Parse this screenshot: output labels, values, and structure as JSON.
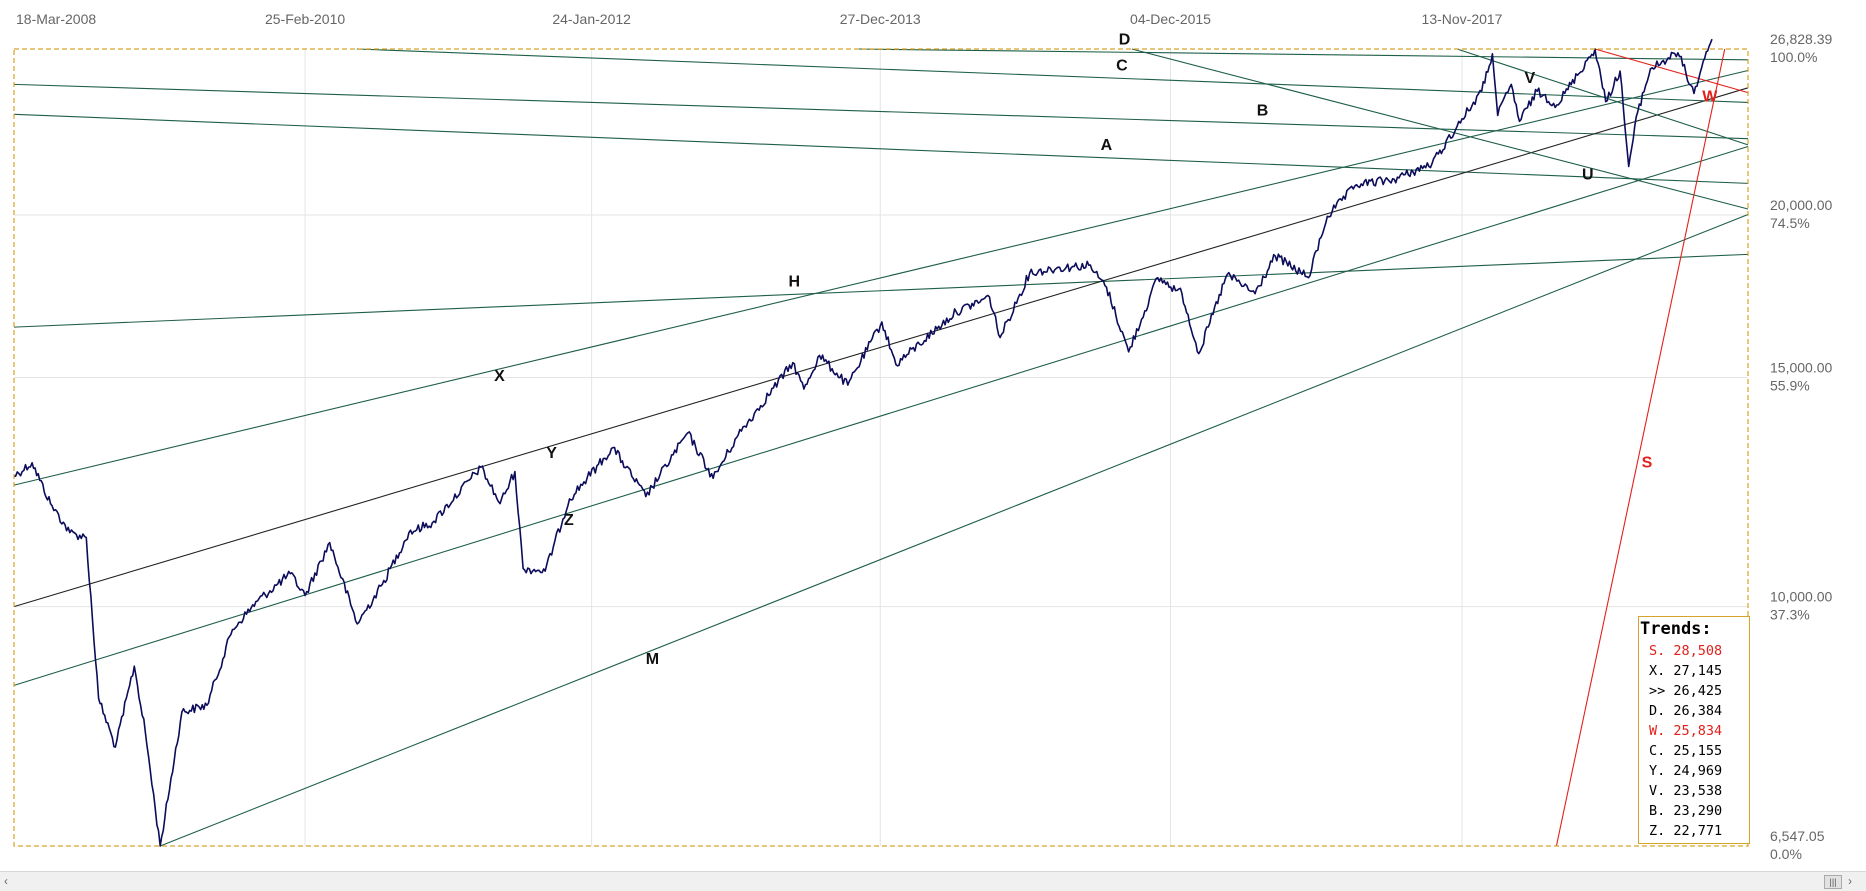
{
  "chart_data": {
    "type": "line",
    "title": "",
    "xlabel": "",
    "ylabel": "",
    "x_ticks": [
      "18-Mar-2008",
      "25-Feb-2010",
      "24-Jan-2012",
      "27-Dec-2013",
      "04-Dec-2015",
      "13-Nov-2017"
    ],
    "y_ticks": [
      {
        "value": "26,828.39",
        "pct": "100.0%"
      },
      {
        "value": "20,000.00",
        "pct": "74.5%"
      },
      {
        "value": "15,000.00",
        "pct": "55.9%"
      },
      {
        "value": "10,000.00",
        "pct": "37.3%"
      },
      {
        "value": "6,547.05",
        "pct": "0.0%"
      }
    ],
    "ylim": [
      6547.05,
      26828.39
    ],
    "y_scale": "log",
    "grid": true,
    "colors": {
      "price": "#0c0c5a",
      "trend": "#1f5e4a",
      "trend_black": "#222222",
      "highlight": "#e3201b",
      "frame": "#d8a32a"
    },
    "series": [
      {
        "values": [
          [
            "2008-03-18",
            12600
          ],
          [
            "2008-05-01",
            12900
          ],
          [
            "2008-06-15",
            12000
          ],
          [
            "2008-08-01",
            11400
          ],
          [
            "2008-09-10",
            11300
          ],
          [
            "2008-10-10",
            8500
          ],
          [
            "2008-11-20",
            7800
          ],
          [
            "2009-01-05",
            9000
          ],
          [
            "2009-02-01",
            8000
          ],
          [
            "2009-03-09",
            6547
          ],
          [
            "2009-05-01",
            8300
          ],
          [
            "2009-07-01",
            8400
          ],
          [
            "2009-09-01",
            9600
          ],
          [
            "2009-11-01",
            10100
          ],
          [
            "2010-01-20",
            10600
          ],
          [
            "2010-02-25",
            10200
          ],
          [
            "2010-04-26",
            11200
          ],
          [
            "2010-07-02",
            9700
          ],
          [
            "2010-09-01",
            10400
          ],
          [
            "2010-11-05",
            11400
          ],
          [
            "2011-01-01",
            11600
          ],
          [
            "2011-04-29",
            12800
          ],
          [
            "2011-06-15",
            12000
          ],
          [
            "2011-07-21",
            12700
          ],
          [
            "2011-08-10",
            10700
          ],
          [
            "2011-10-03",
            10650
          ],
          [
            "2011-12-01",
            12100
          ],
          [
            "2012-03-16",
            13250
          ],
          [
            "2012-06-04",
            12150
          ],
          [
            "2012-09-14",
            13600
          ],
          [
            "2012-11-15",
            12550
          ],
          [
            "2013-01-15",
            13550
          ],
          [
            "2013-05-28",
            15400
          ],
          [
            "2013-06-24",
            14700
          ],
          [
            "2013-08-01",
            15600
          ],
          [
            "2013-10-09",
            14800
          ],
          [
            "2013-12-31",
            16550
          ],
          [
            "2014-02-03",
            15350
          ],
          [
            "2014-06-30",
            16850
          ],
          [
            "2014-09-19",
            17300
          ],
          [
            "2014-10-15",
            16100
          ],
          [
            "2014-12-26",
            18050
          ],
          [
            "2015-03-01",
            18200
          ],
          [
            "2015-05-19",
            18300
          ],
          [
            "2015-07-01",
            17600
          ],
          [
            "2015-08-24",
            15700
          ],
          [
            "2015-11-03",
            17900
          ],
          [
            "2016-01-01",
            17400
          ],
          [
            "2016-02-11",
            15650
          ],
          [
            "2016-04-20",
            18000
          ],
          [
            "2016-06-27",
            17400
          ],
          [
            "2016-08-15",
            18600
          ],
          [
            "2016-11-04",
            17900
          ],
          [
            "2016-12-20",
            19950
          ],
          [
            "2017-03-01",
            21100
          ],
          [
            "2017-06-01",
            21300
          ],
          [
            "2017-09-01",
            21900
          ],
          [
            "2017-11-01",
            23400
          ],
          [
            "2017-12-31",
            24900
          ],
          [
            "2018-01-26",
            26600
          ],
          [
            "2018-02-08",
            23850
          ],
          [
            "2018-03-13",
            25200
          ],
          [
            "2018-04-02",
            23600
          ],
          [
            "2018-05-15",
            24900
          ],
          [
            "2018-07-02",
            24300
          ],
          [
            "2018-10-03",
            26828
          ],
          [
            "2018-10-29",
            24440
          ],
          [
            "2018-12-03",
            25800
          ],
          [
            "2018-12-24",
            21790
          ],
          [
            "2019-01-15",
            24000
          ],
          [
            "2019-02-15",
            25900
          ],
          [
            "2019-04-23",
            26650
          ],
          [
            "2019-06-01",
            24800
          ],
          [
            "2019-07-01",
            26700
          ],
          [
            "2019-07-15",
            27300
          ]
        ]
      }
    ],
    "trendlines": [
      {
        "label": "A",
        "color": "#1f5e4a",
        "p1": [
          "2008-03-18",
          23900
        ],
        "p2": [
          "2020-01-01",
          21100
        ]
      },
      {
        "label": "B",
        "color": "#1f5e4a",
        "p1": [
          "2008-03-18",
          25200
        ],
        "p2": [
          "2020-01-01",
          22850
        ]
      },
      {
        "label": "H",
        "color": "#1f5e4a",
        "p1": [
          "2008-03-18",
          16400
        ],
        "p2": [
          "2020-01-01",
          18700
        ]
      },
      {
        "label": "X",
        "color": "#1f5e4a",
        "p1": [
          "2008-03-18",
          12400
        ],
        "p2": [
          "2020-01-01",
          26200
        ]
      },
      {
        "label": "Y",
        "color": "#222222",
        "p1": [
          "2008-03-18",
          10000
        ],
        "p2": [
          "2020-01-01",
          25500
        ]
      },
      {
        "label": "Z",
        "color": "#1f5e4a",
        "p1": [
          "2008-03-18",
          8700
        ],
        "p2": [
          "2020-01-01",
          23000
        ]
      },
      {
        "label": "M",
        "color": "#1f5e4a",
        "p1": [
          "2009-03-09",
          6547
        ],
        "p2": [
          "2020-01-01",
          20500
        ]
      },
      {
        "label": "C",
        "color": "#1f5e4a",
        "p1": [
          "2010-07-01",
          26828
        ],
        "p2": [
          "2020-01-01",
          24350
        ]
      },
      {
        "label": "D",
        "color": "#1f5e4a",
        "p1": [
          "2013-11-01",
          26828
        ],
        "p2": [
          "2020-01-01",
          26300
        ]
      },
      {
        "label": "U",
        "color": "#1f5e4a",
        "p1": [
          "2015-09-01",
          26828
        ],
        "p2": [
          "2020-01-01",
          19900
        ]
      },
      {
        "label": "V",
        "color": "#1f5e4a",
        "p1": [
          "2017-11-01",
          26828
        ],
        "p2": [
          "2020-01-01",
          22200
        ]
      },
      {
        "label": "W",
        "color": "#e3201b",
        "p1": [
          "2018-10-03",
          26828
        ],
        "p2": [
          "2019-12-15",
          24500
        ]
      },
      {
        "label": "S",
        "color": "#e3201b",
        "p1": [
          "2018-07-01",
          6547
        ],
        "p2": [
          "2019-08-15",
          26828
        ]
      }
    ],
    "trends_panel": {
      "title": "Trends:",
      "rows": [
        {
          "label": "S.",
          "value": "28,508",
          "color": "#e3201b"
        },
        {
          "label": "X.",
          "value": "27,145",
          "color": "#000000"
        },
        {
          "label": ">>",
          "value": "26,425",
          "color": "#000000"
        },
        {
          "label": "D.",
          "value": "26,384",
          "color": "#000000"
        },
        {
          "label": "W.",
          "value": "25,834",
          "color": "#e3201b"
        },
        {
          "label": "C.",
          "value": "25,155",
          "color": "#000000"
        },
        {
          "label": "Y.",
          "value": "24,969",
          "color": "#000000"
        },
        {
          "label": "V.",
          "value": "23,538",
          "color": "#000000"
        },
        {
          "label": "B.",
          "value": "23,290",
          "color": "#000000"
        },
        {
          "label": "Z.",
          "value": "22,771",
          "color": "#000000"
        }
      ]
    }
  },
  "scrollbar": {
    "left_arrow": "‹",
    "right_arrow": "›",
    "thumb": "|||"
  }
}
